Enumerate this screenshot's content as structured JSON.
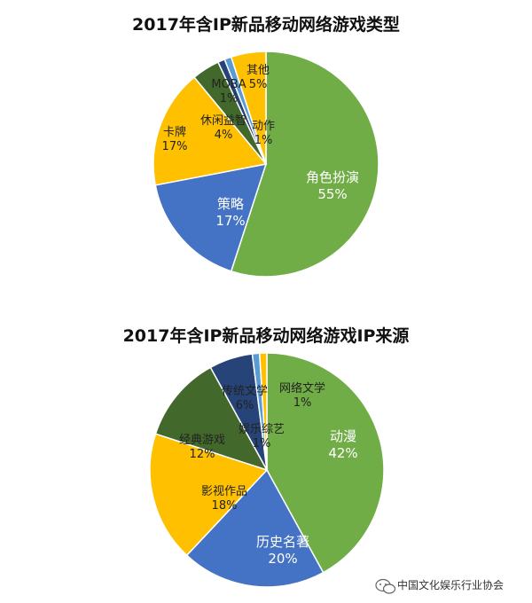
{
  "chart_data": [
    {
      "type": "pie",
      "title": "2017年含IP新品移动网络游戏类型",
      "slices": [
        {
          "name": "角色扮演",
          "value": 55,
          "label": "55%",
          "color": "#70AD47"
        },
        {
          "name": "策略",
          "value": 17,
          "label": "17%",
          "color": "#4472C4"
        },
        {
          "name": "卡牌",
          "value": 17,
          "label": "17%",
          "color": "#FFC000"
        },
        {
          "name": "休闲益智",
          "value": 4,
          "label": "4%",
          "color": "#43682B"
        },
        {
          "name": "MOBA",
          "value": 1,
          "label": "1%",
          "color": "#264478"
        },
        {
          "name": "动作",
          "value": 1,
          "label": "1%",
          "color": "#5B9BD5"
        },
        {
          "name": "其他",
          "value": 5,
          "label": "5%",
          "color": "#FFC000"
        }
      ]
    },
    {
      "type": "pie",
      "title": "2017年含IP新品移动网络游戏IP来源",
      "slices": [
        {
          "name": "动漫",
          "value": 42,
          "label": "42%",
          "color": "#70AD47"
        },
        {
          "name": "历史名著",
          "value": 20,
          "label": "20%",
          "color": "#4472C4"
        },
        {
          "name": "影视作品",
          "value": 18,
          "label": "18%",
          "color": "#FFC000"
        },
        {
          "name": "经典游戏",
          "value": 12,
          "label": "12%",
          "color": "#43682B"
        },
        {
          "name": "传统文学",
          "value": 6,
          "label": "6%",
          "color": "#264478"
        },
        {
          "name": "娱乐综艺",
          "value": 1,
          "label": "1%",
          "color": "#5B9BD5"
        },
        {
          "name": "网络文学",
          "value": 1,
          "label": "1%",
          "color": "#FFC000"
        }
      ]
    }
  ],
  "watermark": {
    "text": "中国文化娱乐行业协会",
    "icon": "wechat-icon"
  }
}
